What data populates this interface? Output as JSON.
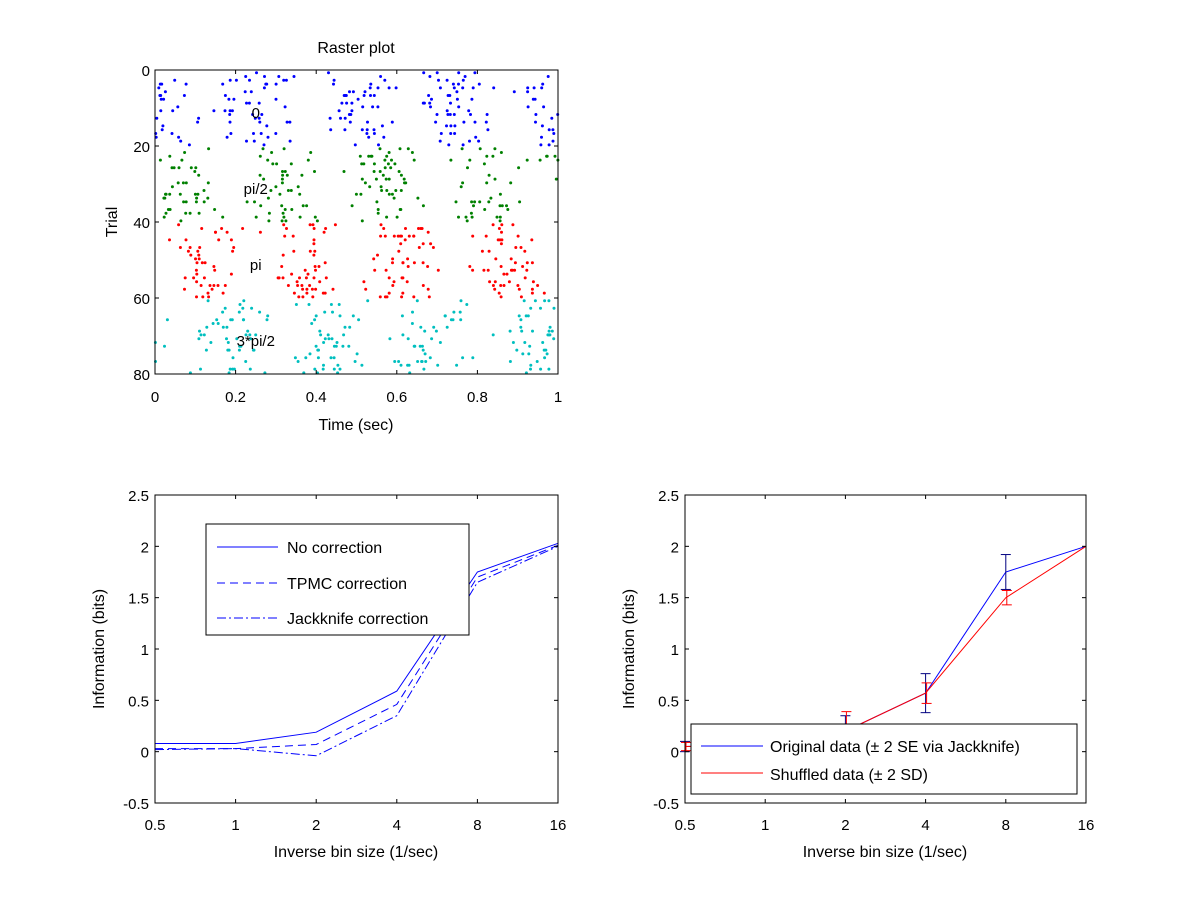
{
  "chart_data": [
    {
      "type": "scatter",
      "title": "Raster plot",
      "xlabel": "Time (sec)",
      "ylabel": "Trial",
      "xlim": [
        0,
        1
      ],
      "ylim": [
        0,
        80
      ],
      "y_reversed": true,
      "xticks": [
        "0",
        "0.2",
        "0.4",
        "0.6",
        "0.8",
        "1"
      ],
      "yticks": [
        "0",
        "20",
        "40",
        "60",
        "80"
      ],
      "groups": [
        {
          "label": "0",
          "trials": [
            1,
            20
          ],
          "color": "#0000ff",
          "label_pos": [
            0.25,
            11
          ]
        },
        {
          "label": "pi/2",
          "trials": [
            21,
            40
          ],
          "color": "#008000",
          "label_pos": [
            0.25,
            31
          ]
        },
        {
          "label": "pi",
          "trials": [
            41,
            60
          ],
          "color": "#ff0000",
          "label_pos": [
            0.25,
            51
          ]
        },
        {
          "label": "3*pi/2",
          "trials": [
            61,
            80
          ],
          "color": "#00bfbf",
          "label_pos": [
            0.25,
            71
          ]
        }
      ],
      "spike_rate_per_trial": 14
    },
    {
      "type": "line",
      "xlabel": "Inverse bin size (1/sec)",
      "ylabel": "Information (bits)",
      "x_scale": "log2",
      "x": [
        0.5,
        1,
        2,
        4,
        8,
        16
      ],
      "xticks": [
        "0.5",
        "1",
        "2",
        "4",
        "8",
        "16"
      ],
      "ylim": [
        -0.5,
        2.5
      ],
      "yticks": [
        "-0.5",
        "0",
        "0.5",
        "1",
        "1.5",
        "2",
        "2.5"
      ],
      "legend_position": "upper-left",
      "series": [
        {
          "name": "No correction",
          "values": [
            0.08,
            0.08,
            0.19,
            0.59,
            1.75,
            2.03
          ],
          "style": "solid",
          "color": "#0000ff"
        },
        {
          "name": "TPMC correction",
          "values": [
            0.03,
            0.03,
            0.07,
            0.46,
            1.7,
            2.01
          ],
          "style": "dashed",
          "color": "#0000ff"
        },
        {
          "name": "Jackknife correction",
          "values": [
            0.02,
            0.03,
            -0.04,
            0.35,
            1.65,
            2.0
          ],
          "style": "dashdot",
          "color": "#0000ff"
        }
      ]
    },
    {
      "type": "line",
      "xlabel": "Inverse bin size (1/sec)",
      "ylabel": "Information (bits)",
      "x_scale": "log2",
      "x": [
        0.5,
        1,
        2,
        4,
        8,
        16
      ],
      "xticks": [
        "0.5",
        "1",
        "2",
        "4",
        "8",
        "16"
      ],
      "ylim": [
        -0.5,
        2.5
      ],
      "yticks": [
        "-0.5",
        "0",
        "0.5",
        "1",
        "1.5",
        "2",
        "2.5"
      ],
      "legend_position": "lower-right",
      "series": [
        {
          "name": "Original data (± 2 SE via Jackknife)",
          "values": [
            0.05,
            0.07,
            0.2,
            0.57,
            1.75,
            2.0
          ],
          "error": [
            0.05,
            0.05,
            0.15,
            0.19,
            0.17,
            0.0
          ],
          "style": "solid",
          "color": "#0000ff"
        },
        {
          "name": "Shuffled data (± 2 SD)",
          "values": [
            0.05,
            0.06,
            0.2,
            0.57,
            1.5,
            2.0
          ],
          "error": [
            0.04,
            0.05,
            0.19,
            0.1,
            0.07,
            0.0
          ],
          "style": "solid",
          "color": "#ff0000"
        }
      ]
    }
  ]
}
